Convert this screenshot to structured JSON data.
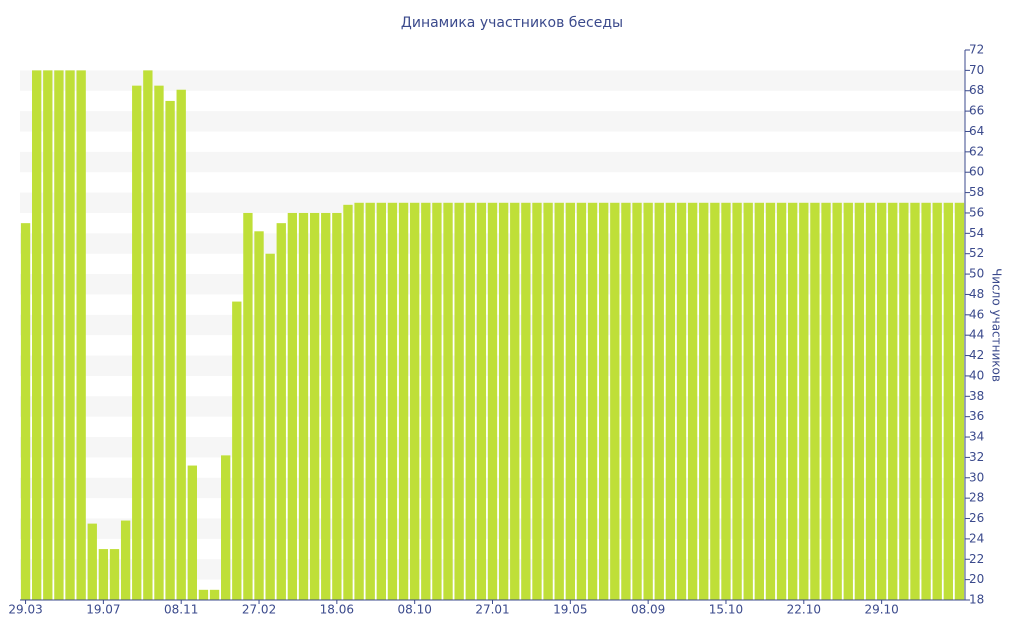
{
  "chart_data": {
    "type": "bar",
    "title": "Динамика участников беседы",
    "y_label": "Число участников",
    "categories": [
      "29.03",
      null,
      null,
      null,
      null,
      null,
      null,
      "19.07",
      null,
      null,
      null,
      null,
      null,
      null,
      "08.11",
      null,
      null,
      null,
      null,
      null,
      null,
      "27.02",
      null,
      null,
      null,
      null,
      null,
      null,
      "18.06",
      null,
      null,
      null,
      null,
      null,
      null,
      "08.10",
      null,
      null,
      null,
      null,
      null,
      null,
      "27.01",
      null,
      null,
      null,
      null,
      null,
      null,
      "19.05",
      null,
      null,
      null,
      null,
      null,
      null,
      "08.09",
      null,
      null,
      null,
      null,
      null,
      null,
      "15.10",
      null,
      null,
      null,
      null,
      null,
      null,
      "22.10",
      null,
      null,
      null,
      null,
      null,
      null,
      "29.10",
      null,
      null,
      null,
      null,
      null,
      null,
      null
    ],
    "values": [
      55,
      70,
      70,
      70,
      70,
      70,
      25.5,
      23,
      23,
      25.8,
      68.5,
      70,
      68.5,
      67,
      68.1,
      31.2,
      19,
      19,
      32.2,
      47.3,
      56,
      54.2,
      52,
      55,
      56,
      56,
      56,
      56,
      56,
      56.8,
      57,
      57,
      57,
      57,
      57,
      57,
      57,
      57,
      57,
      57,
      57,
      57,
      57,
      57,
      57,
      57,
      57,
      57,
      57,
      57,
      57,
      57,
      57,
      57,
      57,
      57,
      57,
      57,
      57,
      57,
      57,
      57,
      57,
      57,
      57,
      57,
      57,
      57,
      57,
      57,
      57,
      57,
      57,
      57,
      57,
      57,
      57,
      57,
      57,
      57,
      57,
      57,
      57,
      57,
      57
    ],
    "color": "#bfdf38",
    "ylim": [
      18,
      72
    ],
    "yticks": [
      18,
      20,
      22,
      24,
      26,
      28,
      30,
      32,
      34,
      36,
      38,
      40,
      42,
      44,
      46,
      48,
      50,
      52,
      54,
      56,
      58,
      60,
      62,
      64,
      66,
      68,
      70,
      72
    ],
    "grid": true
  }
}
